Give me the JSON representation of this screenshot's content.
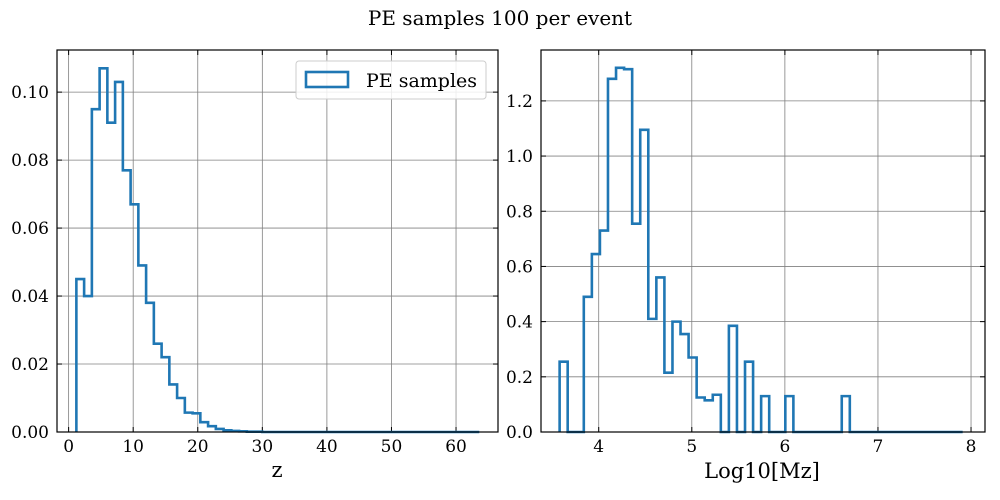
{
  "figure": {
    "suptitle": "PE samples 100 per event",
    "colors": {
      "series": "#1f77b4",
      "grid": "#808080",
      "frame": "#000000"
    }
  },
  "chart_data": [
    {
      "type": "histogram",
      "xlabel": "z",
      "ylabel": "",
      "xlim": [
        -1.8,
        66.5
      ],
      "ylim": [
        0,
        0.1124
      ],
      "xticks": [
        0,
        10,
        20,
        30,
        40,
        50,
        60
      ],
      "yticks": [
        0.0,
        0.02,
        0.04,
        0.06,
        0.08,
        0.1
      ],
      "ytick_labels": [
        "0.00",
        "0.02",
        "0.04",
        "0.06",
        "0.08",
        "0.10"
      ],
      "grid": true,
      "legend": {
        "placement": "top-right",
        "entries": [
          "PE samples"
        ]
      },
      "series": [
        {
          "name": "PE samples",
          "bin_edges": [
            1.2,
            2.4,
            3.6,
            4.8,
            6.0,
            7.2,
            8.4,
            9.6,
            10.8,
            12.0,
            13.2,
            14.4,
            15.6,
            16.8,
            18.0,
            19.2,
            20.4,
            21.6,
            22.8,
            24.0,
            25.2,
            26.4,
            27.6,
            28.8,
            30.0,
            31.2,
            32.4,
            33.6,
            34.8,
            36.0,
            37.2,
            38.4,
            39.6,
            40.8,
            42.0,
            43.2,
            44.4,
            45.6,
            46.8,
            48.0,
            49.2,
            50.4,
            51.6,
            52.8,
            54.0,
            55.2,
            56.4,
            57.6,
            58.8,
            60.0,
            61.2,
            62.4,
            63.6
          ],
          "values": [
            0.045,
            0.04,
            0.095,
            0.107,
            0.091,
            0.103,
            0.077,
            0.067,
            0.049,
            0.038,
            0.026,
            0.022,
            0.014,
            0.01,
            0.0057,
            0.0055,
            0.0029,
            0.0017,
            0.0009,
            0.0005,
            0.0003,
            0.0002,
            0.0001,
            0.0001,
            0,
            0,
            0,
            0,
            0,
            0,
            0,
            0,
            0,
            0,
            0,
            0,
            0,
            0,
            0,
            0,
            0,
            0,
            0,
            0,
            0,
            0,
            0,
            0,
            0,
            0,
            0,
            0
          ]
        }
      ]
    },
    {
      "type": "histogram",
      "xlabel": "Log10[Mz]",
      "ylabel": "",
      "xlim": [
        3.38,
        8.15
      ],
      "ylim": [
        0,
        1.3844
      ],
      "xticks": [
        4,
        5,
        6,
        7,
        8
      ],
      "yticks": [
        0.0,
        0.2,
        0.4,
        0.6,
        0.8,
        1.0,
        1.2
      ],
      "ytick_labels": [
        "0.0",
        "0.2",
        "0.4",
        "0.6",
        "0.8",
        "1.0",
        "1.2"
      ],
      "grid": true,
      "series": [
        {
          "name": "",
          "bin_edges": [
            3.58,
            3.6666,
            3.7532,
            3.8398,
            3.9264,
            4.013,
            4.0996,
            4.1862,
            4.2728,
            4.3594,
            4.446,
            4.5326,
            4.6192,
            4.7058,
            4.7924,
            4.879,
            4.9656,
            5.0522,
            5.1388,
            5.2254,
            5.312,
            5.3986,
            5.4852,
            5.5718,
            5.6584,
            5.745,
            5.8316,
            5.9182,
            6.0048,
            6.0914,
            6.178,
            6.2646,
            6.3512,
            6.4378,
            6.5244,
            6.611,
            6.6976,
            6.7842,
            6.8708,
            6.9574,
            7.044,
            7.1306,
            7.2172,
            7.3038,
            7.3904,
            7.477,
            7.5636,
            7.6502,
            7.7368,
            7.8234,
            7.91
          ],
          "values": [
            0.255,
            0,
            0,
            0.49,
            0.645,
            0.73,
            1.28,
            1.32,
            1.315,
            0.755,
            1.095,
            0.41,
            0.56,
            0.215,
            0.4,
            0.355,
            0.27,
            0.125,
            0.115,
            0.135,
            0,
            0.385,
            0,
            0.255,
            0,
            0.13,
            0,
            0,
            0.13,
            0,
            0,
            0,
            0,
            0,
            0,
            0.13,
            0,
            0,
            0,
            0,
            0,
            0,
            0,
            0,
            0,
            0,
            0,
            0,
            0,
            0
          ]
        }
      ]
    }
  ]
}
